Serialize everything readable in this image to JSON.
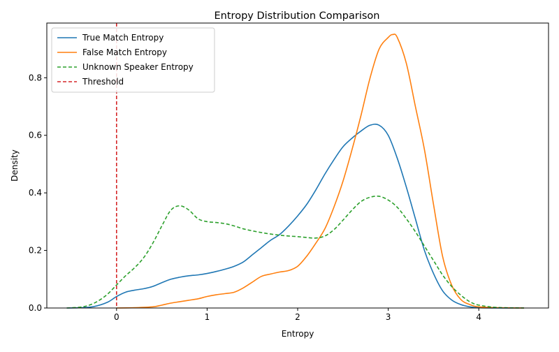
{
  "chart_data": {
    "type": "line",
    "title": "Entropy Distribution Comparison",
    "xlabel": "Entropy",
    "ylabel": "Density",
    "xlim": [
      -0.77,
      4.77
    ],
    "ylim": [
      0,
      0.99
    ],
    "xticks": [
      0,
      1,
      2,
      3,
      4
    ],
    "xtick_labels": [
      "0",
      "1",
      "2",
      "3",
      "4"
    ],
    "yticks": [
      0.0,
      0.2,
      0.4,
      0.6,
      0.8
    ],
    "ytick_labels": [
      "0.0",
      "0.2",
      "0.4",
      "0.6",
      "0.8"
    ],
    "grid": false,
    "legend_position": "top-left",
    "series": [
      {
        "name": "True Match Entropy",
        "color": "#1f77b4",
        "style": "solid",
        "x": [
          -0.55,
          -0.4,
          -0.25,
          -0.1,
          0,
          0.1,
          0.2,
          0.3,
          0.4,
          0.5,
          0.6,
          0.7,
          0.8,
          0.9,
          1.0,
          1.1,
          1.2,
          1.3,
          1.4,
          1.5,
          1.6,
          1.7,
          1.8,
          1.9,
          2.0,
          2.1,
          2.2,
          2.3,
          2.4,
          2.5,
          2.6,
          2.7,
          2.8,
          2.9,
          3.0,
          3.1,
          3.2,
          3.3,
          3.4,
          3.5,
          3.6,
          3.7,
          3.8,
          3.9,
          4.0,
          4.2,
          4.5
        ],
        "y": [
          0.0,
          0.001,
          0.005,
          0.02,
          0.04,
          0.055,
          0.062,
          0.067,
          0.075,
          0.088,
          0.1,
          0.107,
          0.112,
          0.115,
          0.12,
          0.127,
          0.135,
          0.145,
          0.16,
          0.185,
          0.21,
          0.235,
          0.255,
          0.285,
          0.32,
          0.36,
          0.41,
          0.465,
          0.515,
          0.56,
          0.59,
          0.615,
          0.635,
          0.635,
          0.6,
          0.52,
          0.42,
          0.31,
          0.2,
          0.12,
          0.06,
          0.028,
          0.012,
          0.004,
          0.001,
          0.0,
          0.0
        ]
      },
      {
        "name": "False Match Entropy",
        "color": "#ff7f0e",
        "style": "solid",
        "x": [
          0,
          0.2,
          0.4,
          0.5,
          0.6,
          0.7,
          0.8,
          0.9,
          1.0,
          1.1,
          1.2,
          1.3,
          1.4,
          1.5,
          1.6,
          1.7,
          1.8,
          1.9,
          2.0,
          2.1,
          2.2,
          2.3,
          2.4,
          2.5,
          2.6,
          2.7,
          2.8,
          2.9,
          3.0,
          3.05,
          3.1,
          3.2,
          3.3,
          3.4,
          3.5,
          3.6,
          3.7,
          3.8,
          3.9,
          4.0,
          4.2,
          4.5
        ],
        "y": [
          0.0,
          0.001,
          0.004,
          0.01,
          0.017,
          0.022,
          0.027,
          0.032,
          0.04,
          0.046,
          0.05,
          0.055,
          0.07,
          0.09,
          0.11,
          0.118,
          0.125,
          0.13,
          0.145,
          0.18,
          0.225,
          0.275,
          0.35,
          0.44,
          0.55,
          0.67,
          0.8,
          0.9,
          0.94,
          0.95,
          0.94,
          0.85,
          0.7,
          0.55,
          0.36,
          0.18,
          0.08,
          0.03,
          0.012,
          0.004,
          0.001,
          0.0
        ]
      },
      {
        "name": "Unknown Speaker Entropy",
        "color": "#2ca02c",
        "style": "dashed",
        "x": [
          -0.55,
          -0.4,
          -0.3,
          -0.2,
          -0.1,
          0,
          0.1,
          0.2,
          0.3,
          0.4,
          0.5,
          0.6,
          0.7,
          0.8,
          0.9,
          1.0,
          1.1,
          1.2,
          1.3,
          1.4,
          1.5,
          1.6,
          1.7,
          1.8,
          1.9,
          2.0,
          2.1,
          2.2,
          2.3,
          2.4,
          2.5,
          2.6,
          2.7,
          2.8,
          2.9,
          3.0,
          3.1,
          3.2,
          3.3,
          3.4,
          3.5,
          3.6,
          3.7,
          3.8,
          3.9,
          4.0,
          4.2,
          4.5
        ],
        "y": [
          0.0,
          0.003,
          0.01,
          0.025,
          0.048,
          0.08,
          0.112,
          0.14,
          0.175,
          0.225,
          0.285,
          0.34,
          0.355,
          0.34,
          0.31,
          0.3,
          0.297,
          0.293,
          0.285,
          0.275,
          0.268,
          0.262,
          0.257,
          0.253,
          0.25,
          0.248,
          0.245,
          0.243,
          0.25,
          0.272,
          0.305,
          0.34,
          0.37,
          0.385,
          0.388,
          0.375,
          0.35,
          0.31,
          0.265,
          0.215,
          0.165,
          0.115,
          0.075,
          0.045,
          0.022,
          0.01,
          0.002,
          0.0
        ]
      }
    ],
    "threshold": {
      "name": "Threshold",
      "x": 0,
      "color": "#d62728",
      "style": "dashed"
    }
  }
}
